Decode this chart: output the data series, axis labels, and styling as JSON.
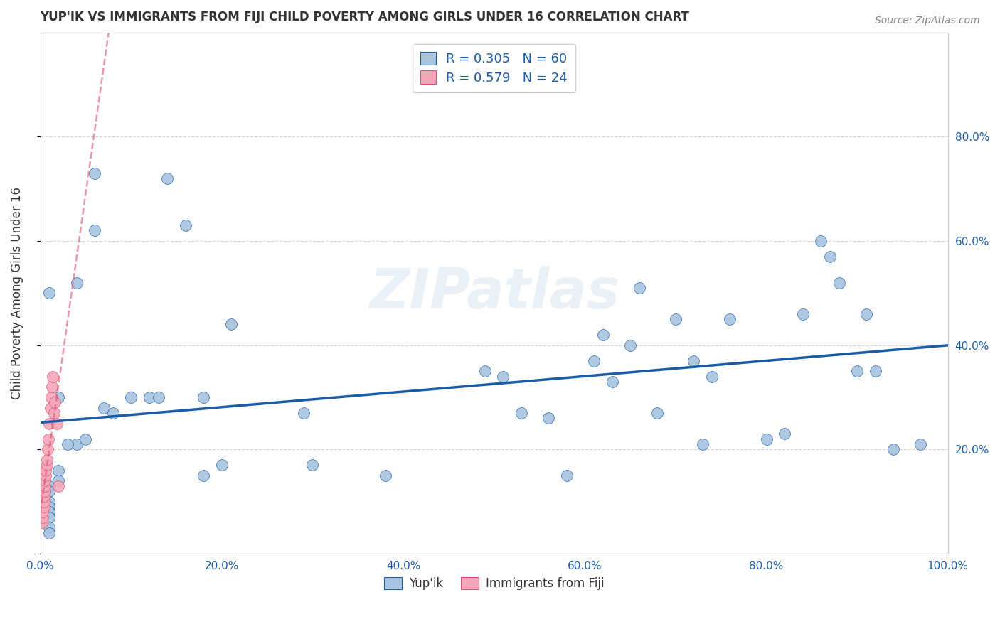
{
  "title": "YUP'IK VS IMMIGRANTS FROM FIJI CHILD POVERTY AMONG GIRLS UNDER 16 CORRELATION CHART",
  "source": "Source: ZipAtlas.com",
  "ylabel": "Child Poverty Among Girls Under 16",
  "xlim": [
    0,
    1.0
  ],
  "ylim": [
    0,
    1.0
  ],
  "xticks": [
    0.0,
    0.2,
    0.4,
    0.6,
    0.8,
    1.0
  ],
  "yticks": [
    0.0,
    0.2,
    0.4,
    0.6,
    0.8
  ],
  "xtick_labels": [
    "0.0%",
    "20.0%",
    "40.0%",
    "60.0%",
    "80.0%",
    "100.0%"
  ],
  "ytick_labels": [
    "",
    "20.0%",
    "40.0%",
    "60.0%",
    "80.0%"
  ],
  "right_ytick_labels": [
    "",
    "20.0%",
    "40.0%",
    "60.0%",
    "80.0%"
  ],
  "legend_labels": [
    "Yup'ik",
    "Immigrants from Fiji"
  ],
  "R_yupik": 0.305,
  "N_yupik": 60,
  "R_fiji": 0.579,
  "N_fiji": 24,
  "color_yupik": "#a8c4e0",
  "color_fiji": "#f4a7b9",
  "trendline_yupik_color": "#1a5ca8",
  "trendline_fiji_color": "#d9506e",
  "watermark": "ZIPatlas",
  "background_color": "#ffffff",
  "grid_color": "#cccccc",
  "yupik_x": [
    0.02,
    0.01,
    0.04,
    0.01,
    0.01,
    0.01,
    0.01,
    0.01,
    0.01,
    0.01,
    0.01,
    0.01,
    0.02,
    0.02,
    0.03,
    0.04,
    0.05,
    0.06,
    0.06,
    0.07,
    0.08,
    0.1,
    0.12,
    0.13,
    0.14,
    0.16,
    0.18,
    0.18,
    0.2,
    0.21,
    0.29,
    0.3,
    0.38,
    0.49,
    0.51,
    0.53,
    0.56,
    0.58,
    0.61,
    0.62,
    0.63,
    0.65,
    0.66,
    0.68,
    0.7,
    0.72,
    0.73,
    0.74,
    0.76,
    0.8,
    0.82,
    0.84,
    0.86,
    0.87,
    0.88,
    0.9,
    0.91,
    0.92,
    0.94,
    0.97
  ],
  "yupik_y": [
    0.3,
    0.5,
    0.21,
    0.13,
    0.12,
    0.1,
    0.09,
    0.08,
    0.08,
    0.07,
    0.05,
    0.04,
    0.16,
    0.14,
    0.21,
    0.52,
    0.22,
    0.62,
    0.73,
    0.28,
    0.27,
    0.3,
    0.3,
    0.3,
    0.72,
    0.63,
    0.15,
    0.3,
    0.17,
    0.44,
    0.27,
    0.17,
    0.15,
    0.35,
    0.34,
    0.27,
    0.26,
    0.15,
    0.37,
    0.42,
    0.33,
    0.4,
    0.51,
    0.27,
    0.45,
    0.37,
    0.21,
    0.34,
    0.45,
    0.22,
    0.23,
    0.46,
    0.6,
    0.57,
    0.52,
    0.35,
    0.46,
    0.35,
    0.2,
    0.21
  ],
  "fiji_x": [
    0.002,
    0.003,
    0.003,
    0.004,
    0.004,
    0.004,
    0.005,
    0.005,
    0.005,
    0.006,
    0.006,
    0.007,
    0.007,
    0.008,
    0.009,
    0.01,
    0.011,
    0.012,
    0.013,
    0.014,
    0.015,
    0.016,
    0.018,
    0.02
  ],
  "fiji_y": [
    0.06,
    0.07,
    0.08,
    0.09,
    0.1,
    0.11,
    0.12,
    0.13,
    0.14,
    0.15,
    0.16,
    0.17,
    0.18,
    0.2,
    0.22,
    0.25,
    0.28,
    0.3,
    0.32,
    0.34,
    0.27,
    0.29,
    0.25,
    0.13
  ]
}
